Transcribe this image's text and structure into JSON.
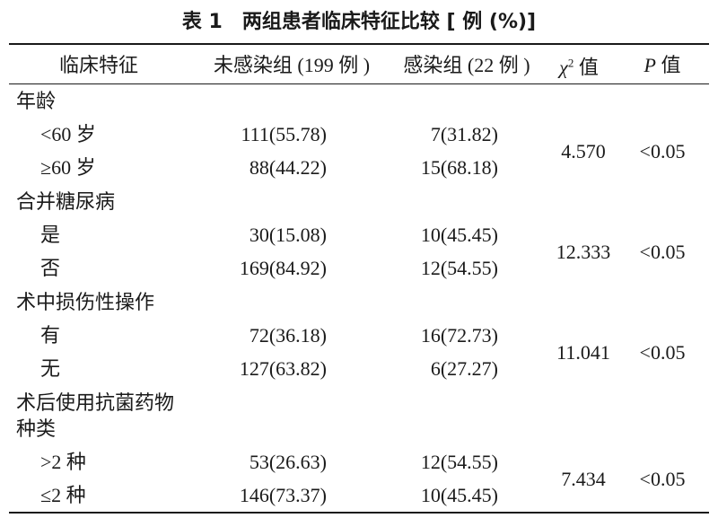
{
  "title": "表 1　两组患者临床特征比较 [ 例 (%)]",
  "table": {
    "header": {
      "feature": "临床特征",
      "uninfected": "未感染组 (199 例 )",
      "infected": "感染组 (22 例 )",
      "chi2": {
        "symbol": "χ",
        "sup": "2",
        "suffix": "值"
      },
      "p": {
        "symbol": "P",
        "suffix": "值"
      }
    },
    "groups": [
      {
        "label": [
          "年龄"
        ],
        "rows": [
          {
            "label": "<60 岁",
            "uninfected": "111(55.78)",
            "infected": "7(31.82)"
          },
          {
            "label": "≥60 岁",
            "uninfected": "88(44.22)",
            "infected": "15(68.18)"
          }
        ],
        "chi2": "4.570",
        "p": "<0.05"
      },
      {
        "label": [
          "合并糖尿病"
        ],
        "rows": [
          {
            "label": "是",
            "uninfected": "30(15.08)",
            "infected": "10(45.45)"
          },
          {
            "label": "否",
            "uninfected": "169(84.92)",
            "infected": "12(54.55)"
          }
        ],
        "chi2": "12.333",
        "p": "<0.05"
      },
      {
        "label": [
          "术中损伤性操作"
        ],
        "rows": [
          {
            "label": "有",
            "uninfected": "72(36.18)",
            "infected": "16(72.73)"
          },
          {
            "label": "无",
            "uninfected": "127(63.82)",
            "infected": "6(27.27)"
          }
        ],
        "chi2": "11.041",
        "p": "<0.05"
      },
      {
        "label": [
          "术后使用抗菌药物",
          "种类"
        ],
        "rows": [
          {
            "label": ">2 种",
            "uninfected": "53(26.63)",
            "infected": "12(54.55)"
          },
          {
            "label": "≤2 种",
            "uninfected": "146(73.37)",
            "infected": "10(45.45)"
          }
        ],
        "chi2": "7.434",
        "p": "<0.05"
      }
    ]
  }
}
